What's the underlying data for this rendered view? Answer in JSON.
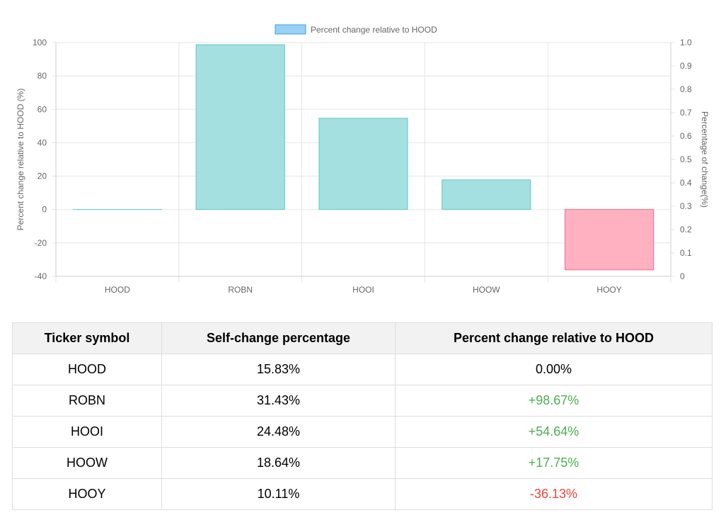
{
  "chart_data": {
    "type": "bar",
    "categories": [
      "HOOD",
      "ROBN",
      "HOOI",
      "HOOW",
      "HOOY"
    ],
    "series": [
      {
        "name": "Percent change relative to HOOD",
        "values": [
          0,
          98.67,
          54.64,
          17.75,
          -36.13
        ]
      }
    ],
    "ylabel": "Percent change relative to HOOD (%)",
    "ylabel_right": "Percentage of change(%)",
    "ylim": [
      -40,
      100
    ],
    "yticks": [
      -40,
      -20,
      0,
      20,
      40,
      60,
      80,
      100
    ],
    "ylim_right": [
      0,
      1.0
    ],
    "yticks_right": [
      "0",
      "0.1",
      "0.2",
      "0.3",
      "0.4",
      "0.5",
      "0.6",
      "0.7",
      "0.8",
      "0.9",
      "1.0"
    ],
    "legend_position": "top",
    "grid": true,
    "colors": {
      "positive_fill": "#a5e0e0",
      "positive_stroke": "#5cc8c8",
      "negative_fill": "#ffb1c1",
      "negative_stroke": "#ff6384",
      "legend_fill": "#9ad0f5",
      "legend_stroke": "#36a2eb"
    }
  },
  "table": {
    "headers": [
      "Ticker symbol",
      "Self-change percentage",
      "Percent change relative to HOOD"
    ],
    "rows": [
      {
        "ticker": "HOOD",
        "self": "15.83%",
        "relative": "0.00%",
        "tone": "neutral"
      },
      {
        "ticker": "ROBN",
        "self": "31.43%",
        "relative": "+98.67%",
        "tone": "pos"
      },
      {
        "ticker": "HOOI",
        "self": "24.48%",
        "relative": "+54.64%",
        "tone": "pos"
      },
      {
        "ticker": "HOOW",
        "self": "18.64%",
        "relative": "+17.75%",
        "tone": "pos"
      },
      {
        "ticker": "HOOY",
        "self": "10.11%",
        "relative": "-36.13%",
        "tone": "neg"
      }
    ]
  }
}
